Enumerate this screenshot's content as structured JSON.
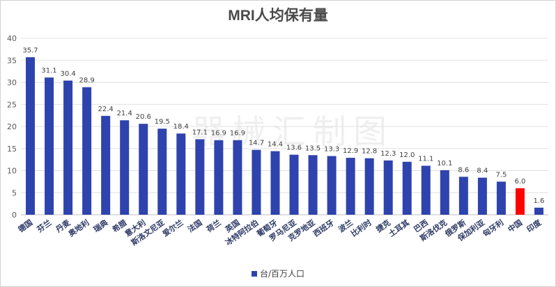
{
  "chart_data": {
    "type": "bar",
    "title": "MRI人均保有量",
    "categories": [
      "德国",
      "芬兰",
      "丹麦",
      "奥地利",
      "瑞典",
      "希腊",
      "意大利",
      "斯洛文尼亚",
      "爱尔兰",
      "法国",
      "荷兰",
      "英国",
      "冰特阿拉伯",
      "葡萄牙",
      "罗马尼亚",
      "克罗地亚",
      "西班牙",
      "波兰",
      "比利时",
      "捷克",
      "土耳其",
      "巴西",
      "斯洛伐克",
      "俄罗斯",
      "保加利亚",
      "匈牙利",
      "中国",
      "印度"
    ],
    "values": [
      35.7,
      31.1,
      30.4,
      28.9,
      22.4,
      21.4,
      20.6,
      19.5,
      18.4,
      17.1,
      16.9,
      16.9,
      14.7,
      14.4,
      13.6,
      13.5,
      13.3,
      12.9,
      12.8,
      12.3,
      12.0,
      11.1,
      10.1,
      8.6,
      8.4,
      7.5,
      6.0,
      1.6
    ],
    "value_labels": [
      "35.7",
      "31.1",
      "30.4",
      "28.9",
      "22.4",
      "21.4",
      "20.6",
      "19.5",
      "18.4",
      "17.1",
      "16.9",
      "16.9",
      "14.7",
      "14.4",
      "13.6",
      "13.5",
      "13.3",
      "12.9",
      "12.8",
      "12.3",
      "12.0",
      "11.1",
      "10.1",
      "8.6",
      "8.4",
      "7.5",
      "6.0",
      "1.6"
    ],
    "highlight_index": 26,
    "ylim": [
      0,
      40
    ],
    "yticks": [
      "0",
      "5",
      "10",
      "15",
      "20",
      "25",
      "30",
      "35",
      "40"
    ],
    "grid": true,
    "legend_position": "bottom",
    "series": [
      {
        "name": "台/百万人口",
        "color": "#2e43ad"
      }
    ],
    "highlight_color": "#ff0000"
  },
  "watermark": "器械汇制图"
}
